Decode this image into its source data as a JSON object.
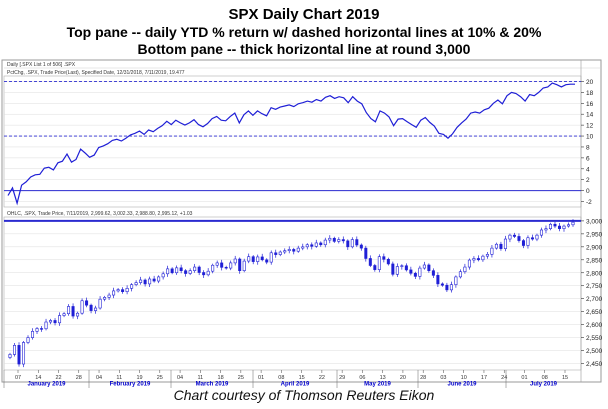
{
  "titles": {
    "line1": "SPX Daily Chart 2019",
    "line2": "Top pane -- daily YTD % return w/ dashed horizontal lines at 10% & 20%",
    "line3": "Bottom pane -- thick horizontal line at round 3,000"
  },
  "panel_header": "Daily [.SPX List 1 of 506] .SPX",
  "top_legend": "PctChg, .SPX, Trade Price(Last), Specified Date, 12/31/2018, 7/11/2019, 19.477",
  "bottom_legend": "OHLC, .SPX, Trade Price, 7/11/2019, 2,999.62, 3,002.33, 2,988.80, 2,995.12, +1.03",
  "caption": "Chart courtesy of Thomson Reuters Eikon",
  "colors": {
    "line": "#1f1fd6",
    "ref": "#2b2bd0",
    "grid": "#dcdcdc",
    "axis": "#0000cc",
    "up": "#ffffff",
    "down": "#1f1fd6"
  },
  "chart_data": [
    {
      "type": "line",
      "title": "Daily YTD % return",
      "ylabel": "%",
      "ylim": [
        -3,
        21
      ],
      "yticks": [
        -2,
        0,
        2,
        4,
        6,
        8,
        10,
        12,
        14,
        16,
        18,
        20
      ],
      "reference_lines": [
        {
          "value": 20,
          "style": "dashed"
        },
        {
          "value": 10,
          "style": "dashed"
        },
        {
          "value": 0,
          "style": "solid"
        }
      ],
      "x_axis": {
        "day_ticks": [
          "07",
          "14",
          "22",
          "28",
          "04",
          "11",
          "19",
          "25",
          "04",
          "11",
          "18",
          "25",
          "01",
          "08",
          "15",
          "22",
          "29",
          "06",
          "13",
          "20",
          "28",
          "03",
          "10",
          "17",
          "24",
          "01",
          "08",
          "15"
        ],
        "months": [
          "January 2019",
          "February 2019",
          "March 2019",
          "April 2019",
          "May 2019",
          "June 2019",
          "July 2019"
        ]
      },
      "values": [
        -0.9,
        0.5,
        -2.3,
        1.0,
        1.6,
        2.5,
        2.9,
        3.0,
        4.1,
        4.3,
        3.8,
        5.1,
        5.4,
        6.7,
        5.2,
        5.7,
        7.6,
        6.9,
        6.1,
        6.5,
        7.9,
        8.2,
        8.6,
        9.2,
        9.4,
        9.1,
        9.6,
        10.2,
        10.5,
        10.9,
        10.3,
        11.1,
        10.8,
        11.4,
        11.9,
        12.7,
        12.1,
        12.9,
        12.4,
        12.0,
        12.4,
        13.0,
        12.1,
        11.7,
        12.3,
        13.2,
        13.6,
        12.9,
        12.8,
        13.6,
        14.2,
        12.4,
        13.9,
        14.6,
        13.8,
        14.6,
        14.1,
        13.7,
        15.2,
        14.9,
        15.3,
        15.5,
        15.7,
        15.4,
        15.9,
        16.1,
        16.4,
        16.2,
        16.7,
        16.4,
        17.1,
        17.4,
        16.9,
        17.2,
        17.0,
        16.1,
        17.2,
        16.4,
        15.9,
        14.3,
        13.2,
        12.6,
        14.6,
        14.2,
        13.5,
        11.9,
        13.1,
        13.2,
        12.6,
        12.1,
        11.6,
        12.9,
        13.4,
        12.5,
        11.8,
        10.5,
        10.3,
        9.6,
        10.4,
        11.6,
        12.4,
        13.1,
        14.2,
        14.4,
        14.2,
        14.8,
        15.1,
        16.0,
        16.6,
        15.9,
        17.4,
        18.0,
        17.8,
        17.2,
        16.4,
        17.6,
        17.4,
        18.0,
        18.8,
        19.0,
        19.7,
        19.4,
        19.0,
        19.4,
        19.5,
        19.5
      ]
    },
    {
      "type": "candlestick",
      "title": "SPX OHLC",
      "ylim": [
        2425,
        3015
      ],
      "yticks": [
        2450,
        2500,
        2550,
        2600,
        2650,
        2700,
        2750,
        2800,
        2850,
        2900,
        2950,
        3000
      ],
      "reference_lines": [
        {
          "value": 3000,
          "style": "thick"
        }
      ],
      "last": {
        "date": "7/11/2019",
        "open": 2999.62,
        "high": 3002.33,
        "low": 2988.8,
        "close": 2995.12,
        "change": 1.03
      },
      "closes": [
        2485,
        2520,
        2448,
        2531,
        2550,
        2574,
        2585,
        2584,
        2610,
        2616,
        2607,
        2635,
        2642,
        2670,
        2633,
        2644,
        2692,
        2675,
        2654,
        2664,
        2698,
        2705,
        2714,
        2730,
        2735,
        2727,
        2740,
        2754,
        2762,
        2772,
        2757,
        2776,
        2768,
        2784,
        2796,
        2815,
        2800,
        2819,
        2808,
        2797,
        2808,
        2822,
        2801,
        2792,
        2806,
        2829,
        2838,
        2821,
        2818,
        2838,
        2853,
        2808,
        2845,
        2862,
        2843,
        2861,
        2850,
        2841,
        2877,
        2870,
        2880,
        2885,
        2890,
        2883,
        2895,
        2900,
        2908,
        2902,
        2915,
        2908,
        2926,
        2933,
        2921,
        2928,
        2923,
        2900,
        2928,
        2907,
        2895,
        2855,
        2828,
        2812,
        2862,
        2852,
        2834,
        2794,
        2824,
        2827,
        2811,
        2798,
        2786,
        2818,
        2830,
        2808,
        2790,
        2757,
        2752,
        2734,
        2754,
        2784,
        2804,
        2822,
        2849,
        2855,
        2850,
        2864,
        2871,
        2895,
        2910,
        2893,
        2930,
        2945,
        2940,
        2924,
        2905,
        2935,
        2930,
        2945,
        2965,
        2970,
        2987,
        2980,
        2970,
        2980,
        2985,
        2995
      ]
    }
  ]
}
